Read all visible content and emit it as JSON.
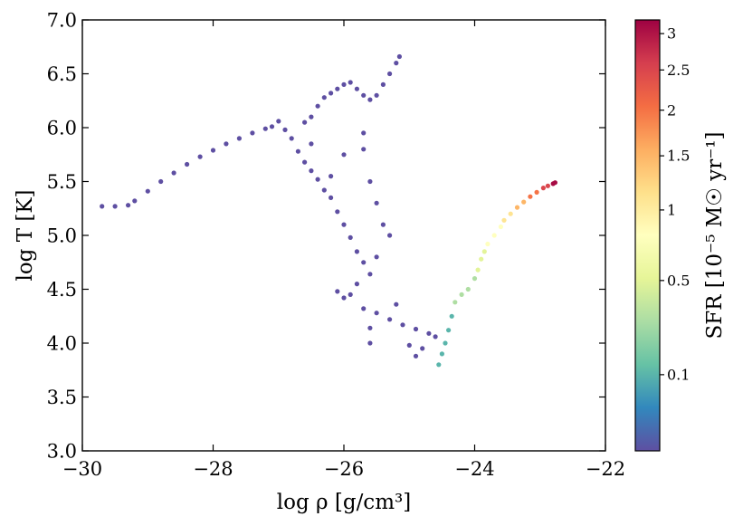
{
  "chart_data": {
    "type": "scatter",
    "title": "",
    "xlabel": "log ρ [g/cm³]",
    "ylabel": "log T [K]",
    "xlim": [
      -30,
      -22
    ],
    "ylim": [
      3.0,
      7.0
    ],
    "x_ticks": [
      -30,
      -28,
      -26,
      -24,
      -22
    ],
    "x_tick_labels": [
      "−30",
      "−28",
      "−26",
      "−24",
      "−22"
    ],
    "y_ticks": [
      3.0,
      3.5,
      4.0,
      4.5,
      5.0,
      5.5,
      6.0,
      6.5,
      7.0
    ],
    "y_tick_labels": [
      "3.0",
      "3.5",
      "4.0",
      "4.5",
      "5.0",
      "5.5",
      "6.0",
      "6.5",
      "7.0"
    ],
    "grid": false,
    "colorbar": {
      "label": "SFR [10⁻⁵ M☉ yr⁻¹]",
      "min": 0,
      "max": 3.2,
      "scale": "sqrt",
      "ticks": [
        0.1,
        0.5,
        1,
        1.5,
        2,
        2.5,
        3
      ],
      "tick_labels": [
        "0.1",
        "0.5",
        "1",
        "1.5",
        "2",
        "2.5",
        "3"
      ],
      "colormap": "Spectral_r",
      "colormap_stops": [
        "#5e4fa2",
        "#3288bd",
        "#66c2a5",
        "#abdda4",
        "#e6f598",
        "#ffffbf",
        "#fee08b",
        "#fdae61",
        "#f46d43",
        "#d53e4f",
        "#9e0142"
      ]
    },
    "series": [
      {
        "sfr": 0,
        "points": [
          [
            -29.7,
            5.27
          ],
          [
            -29.5,
            5.27
          ],
          [
            -29.3,
            5.28
          ],
          [
            -29.2,
            5.32
          ],
          [
            -29.0,
            5.41
          ],
          [
            -28.8,
            5.5
          ],
          [
            -28.6,
            5.58
          ],
          [
            -28.4,
            5.66
          ],
          [
            -28.2,
            5.73
          ],
          [
            -28.0,
            5.79
          ],
          [
            -27.8,
            5.85
          ],
          [
            -27.6,
            5.9
          ],
          [
            -27.4,
            5.95
          ],
          [
            -27.2,
            5.99
          ],
          [
            -27.1,
            6.01
          ],
          [
            -27.0,
            6.06
          ],
          [
            -26.9,
            5.98
          ],
          [
            -26.8,
            5.9
          ],
          [
            -26.7,
            5.78
          ],
          [
            -26.6,
            5.68
          ],
          [
            -26.6,
            6.05
          ],
          [
            -26.5,
            5.6
          ],
          [
            -26.5,
            6.1
          ],
          [
            -26.4,
            5.52
          ],
          [
            -26.4,
            6.2
          ],
          [
            -26.3,
            5.42
          ],
          [
            -26.3,
            6.28
          ],
          [
            -26.2,
            5.35
          ],
          [
            -26.2,
            6.32
          ],
          [
            -26.1,
            5.22
          ],
          [
            -26.1,
            6.36
          ],
          [
            -26.0,
            5.1
          ],
          [
            -26.0,
            6.4
          ],
          [
            -25.9,
            4.98
          ],
          [
            -25.9,
            6.42
          ],
          [
            -25.8,
            4.85
          ],
          [
            -25.8,
            6.36
          ],
          [
            -25.7,
            4.75
          ],
          [
            -25.7,
            6.3
          ],
          [
            -25.6,
            4.64
          ],
          [
            -25.6,
            6.26
          ],
          [
            -25.5,
            6.3
          ],
          [
            -25.4,
            6.4
          ],
          [
            -25.3,
            6.5
          ],
          [
            -25.2,
            6.6
          ],
          [
            -25.15,
            6.66
          ],
          [
            -25.7,
            5.8
          ],
          [
            -25.6,
            5.5
          ],
          [
            -25.5,
            5.3
          ],
          [
            -25.4,
            5.1
          ],
          [
            -25.5,
            4.8
          ],
          [
            -25.8,
            4.55
          ],
          [
            -26.0,
            4.42
          ],
          [
            -25.9,
            4.45
          ],
          [
            -25.7,
            4.32
          ],
          [
            -25.5,
            4.28
          ],
          [
            -25.3,
            4.22
          ],
          [
            -25.1,
            4.17
          ],
          [
            -24.9,
            4.13
          ],
          [
            -24.7,
            4.09
          ],
          [
            -24.6,
            4.06
          ],
          [
            -24.8,
            3.95
          ],
          [
            -25.0,
            3.98
          ],
          [
            -26.1,
            4.48
          ],
          [
            -25.2,
            4.36
          ],
          [
            -26.2,
            5.55
          ],
          [
            -26.0,
            5.75
          ],
          [
            -25.7,
            5.95
          ],
          [
            -26.5,
            5.85
          ],
          [
            -25.6,
            4.0
          ],
          [
            -25.6,
            4.14
          ],
          [
            -24.9,
            3.88
          ],
          [
            -25.3,
            5.0
          ]
        ]
      },
      {
        "sfr": 0.1,
        "points": [
          [
            -24.55,
            3.8
          ],
          [
            -24.5,
            3.9
          ],
          [
            -24.45,
            4.0
          ],
          [
            -24.4,
            4.12
          ],
          [
            -24.35,
            4.25
          ]
        ]
      },
      {
        "sfr": 0.3,
        "points": [
          [
            -24.3,
            4.38
          ],
          [
            -24.2,
            4.45
          ],
          [
            -24.1,
            4.5
          ],
          [
            -24.0,
            4.6
          ]
        ]
      },
      {
        "sfr": 0.5,
        "points": [
          [
            -23.95,
            4.68
          ],
          [
            -23.9,
            4.78
          ],
          [
            -23.85,
            4.85
          ]
        ]
      },
      {
        "sfr": 0.8,
        "points": [
          [
            -23.8,
            4.92
          ],
          [
            -23.7,
            5.0
          ],
          [
            -23.6,
            5.08
          ]
        ]
      },
      {
        "sfr": 1.1,
        "points": [
          [
            -23.55,
            5.14
          ],
          [
            -23.45,
            5.2
          ]
        ]
      },
      {
        "sfr": 1.5,
        "points": [
          [
            -23.35,
            5.26
          ],
          [
            -23.25,
            5.31
          ]
        ]
      },
      {
        "sfr": 2.0,
        "points": [
          [
            -23.15,
            5.36
          ],
          [
            -23.05,
            5.4
          ]
        ]
      },
      {
        "sfr": 2.5,
        "points": [
          [
            -22.95,
            5.44
          ],
          [
            -22.88,
            5.46
          ]
        ]
      },
      {
        "sfr": 3.1,
        "points": [
          [
            -22.8,
            5.48
          ],
          [
            -22.77,
            5.49
          ]
        ]
      }
    ]
  }
}
